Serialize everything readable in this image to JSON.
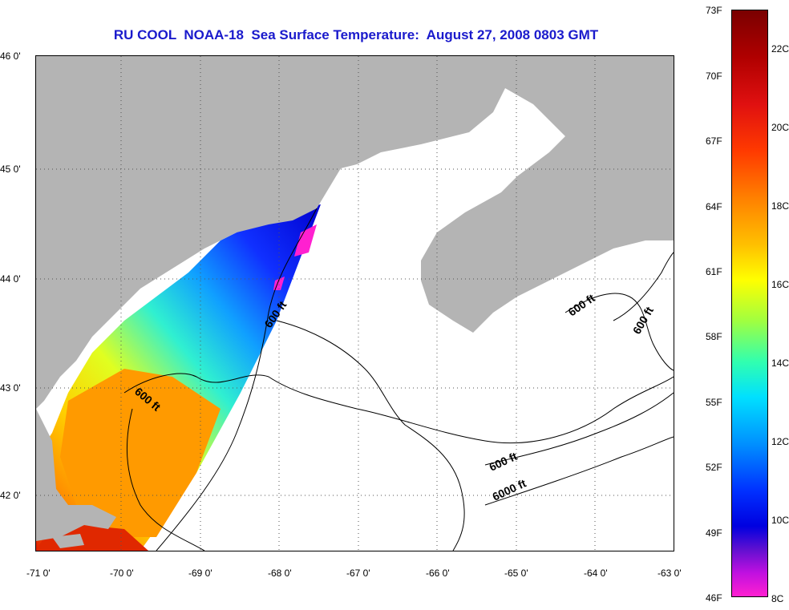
{
  "title": "RU COOL  NOAA-18  Sea Surface Temperature:  August 27, 2008 0803 GMT",
  "map": {
    "lat_labels": [
      "46 0'",
      "45 0'",
      "44 0'",
      "43 0'",
      "42 0'"
    ],
    "lon_labels": [
      "-71 0'",
      "-70 0'",
      "-69 0'",
      "-68 0'",
      "-67 0'",
      "-66 0'",
      "-65 0'",
      "-64 0'",
      "-63 0'"
    ],
    "contour_labels": [
      "600 ft",
      "600 ft",
      "600 ft",
      "600 ft",
      "600 ft",
      "6000 ft"
    ],
    "colors": {
      "land": "#b4b4b4",
      "no_data_water": "#ffffff",
      "contour": "#000000",
      "grid": "#555555"
    }
  },
  "colorbar": {
    "fahrenheit_labels": [
      "73F",
      "70F",
      "67F",
      "64F",
      "61F",
      "58F",
      "55F",
      "52F",
      "49F",
      "46F"
    ],
    "celsius_labels": [
      "22C",
      "20C",
      "18C",
      "16C",
      "14C",
      "12C",
      "10C",
      "8C"
    ]
  }
}
